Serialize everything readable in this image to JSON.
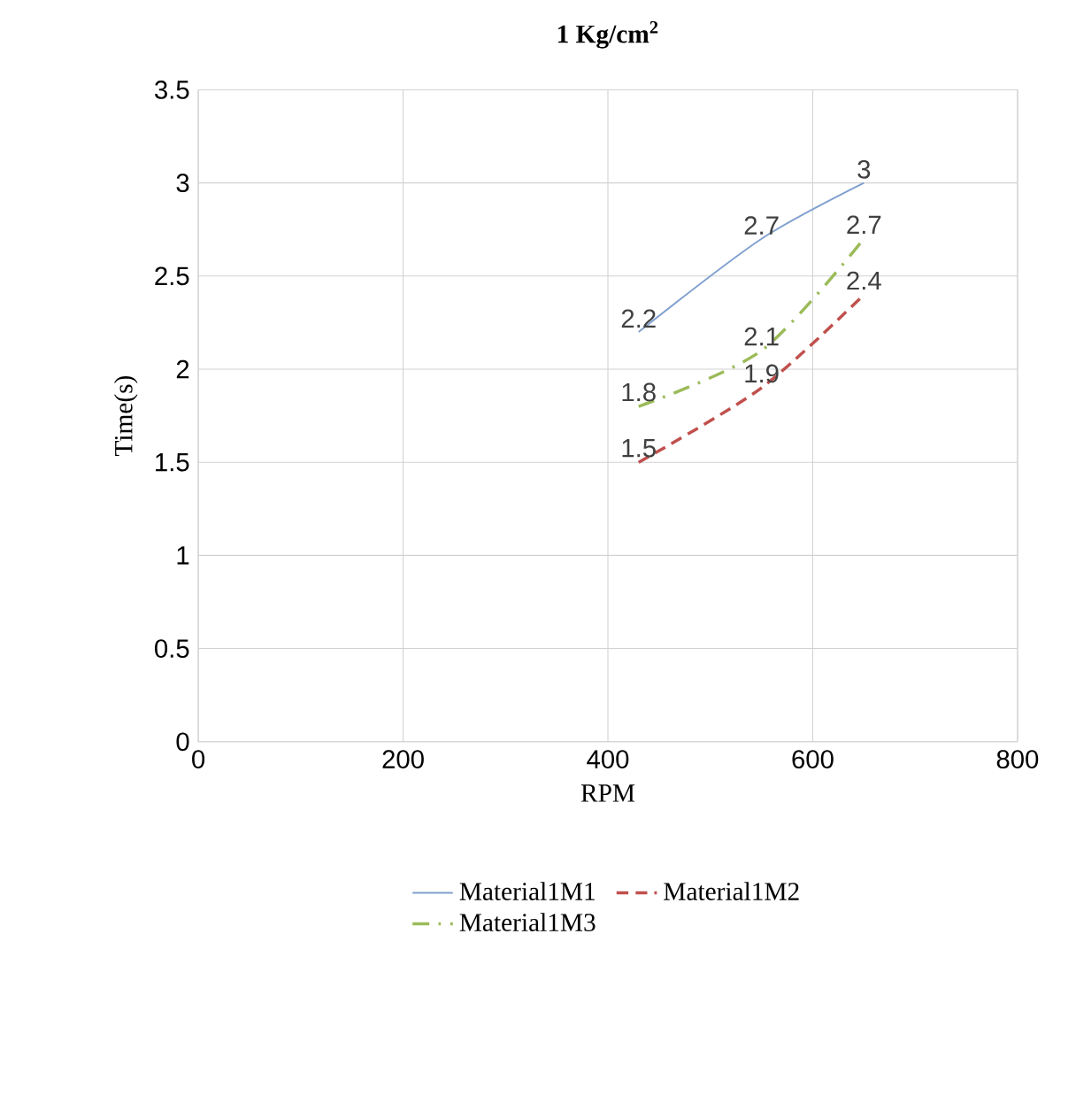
{
  "chart_data": {
    "type": "line",
    "title": "1 Kg/cm$^{2}$",
    "xlabel": "RPM",
    "ylabel": "Time(s)",
    "x": [
      430,
      550,
      650
    ],
    "series": [
      {
        "name": "Material1M1",
        "color": "#7f9fcf",
        "line_style": "solid",
        "values": [
          2.2,
          2.7,
          3
        ]
      },
      {
        "name": "Material1M2",
        "color": "#c0504d",
        "line_style": "dashed",
        "values": [
          1.5,
          1.9,
          2.4
        ]
      },
      {
        "name": "Material1M3",
        "color": "#9bbb59",
        "line_style": "dashdot",
        "values": [
          1.8,
          2.1,
          2.7
        ]
      }
    ],
    "xlim": [
      0,
      800
    ],
    "xticks": [
      0,
      200,
      400,
      600,
      800
    ],
    "ylim": [
      0,
      3.5
    ],
    "yticks": [
      0,
      0.5,
      1,
      1.5,
      2,
      2.5,
      3,
      3.5
    ],
    "grid": true,
    "legend": "bottom",
    "data_labels": true
  }
}
